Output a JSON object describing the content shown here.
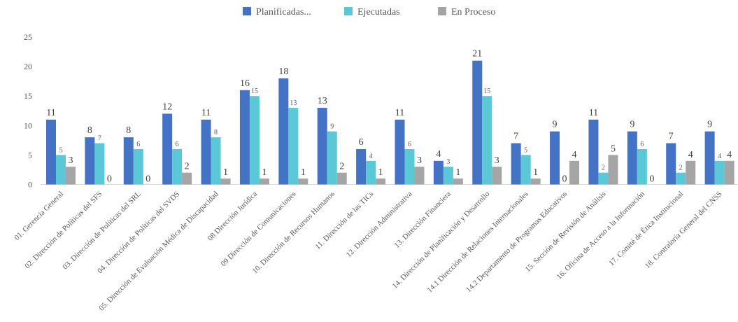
{
  "chart_data": {
    "type": "bar",
    "categories": [
      "01. Gerencia General",
      "02. Dirección de Políticas del SFS",
      "03. Dirección de Políticas del SRL",
      "04. Dirección de Políticas del SVDS",
      "05. Dirección de Evaluación Médica de Discapacidad",
      "08 Dirección Jurídica",
      "09 Dirección de Comunicaciones",
      "10. Dirección de Recursos Humanos",
      "11. Dirección de las TICs",
      "12. Dirección Administrativa",
      "13. Dirección Financiera",
      "14. Dirección de Planificación y Desarrollo",
      "14.1 Dirección de Relaciones Internacionales",
      "14.2 Departamento de Programas Educativos",
      "15. Sección de Revisión de Análisis",
      "16. Oficina de Acceso a la Información",
      "17. Comité de Ética Institucional",
      "18. Contraloría General del CNSS"
    ],
    "series": [
      {
        "name": "Planificadas...",
        "color": "#4472C4",
        "values": [
          11,
          8,
          8,
          12,
          11,
          16,
          18,
          13,
          6,
          11,
          4,
          21,
          7,
          9,
          11,
          9,
          7,
          9
        ],
        "labels": [
          "11",
          "8",
          "8",
          "12",
          "11",
          "16",
          "18",
          "13",
          "6",
          "11",
          "4",
          "21",
          "7",
          "9",
          "11",
          "9",
          "7",
          "9"
        ]
      },
      {
        "name": "Ejecutadas",
        "color": "#5BC8D8",
        "values": [
          5,
          7,
          6,
          6,
          8,
          15,
          13,
          9,
          4,
          6,
          3,
          15,
          5,
          0,
          2,
          6,
          2,
          4
        ],
        "labels": [
          "5",
          "7",
          "6",
          "6",
          "8",
          "15",
          "13",
          "9",
          "4",
          "6",
          "3",
          "15",
          "5",
          "0",
          "2",
          "6",
          "2",
          "4"
        ]
      },
      {
        "name": "En Proceso",
        "color": "#A5A5A5",
        "values": [
          3,
          0,
          0,
          2,
          1,
          1,
          1,
          2,
          1,
          3,
          1,
          3,
          1,
          4,
          5,
          0,
          4,
          4
        ],
        "labels": [
          "3",
          "0",
          "0",
          "2",
          "1",
          "1",
          "1",
          "2",
          "1",
          "3",
          "1",
          "3",
          "1",
          "4",
          "5",
          "0",
          "4",
          "4"
        ]
      }
    ],
    "y_ticks": [
      "0",
      "5",
      "10",
      "15",
      "20",
      "25"
    ],
    "ylim": [
      0,
      25
    ],
    "legend_position": "top-center",
    "grid": false
  }
}
